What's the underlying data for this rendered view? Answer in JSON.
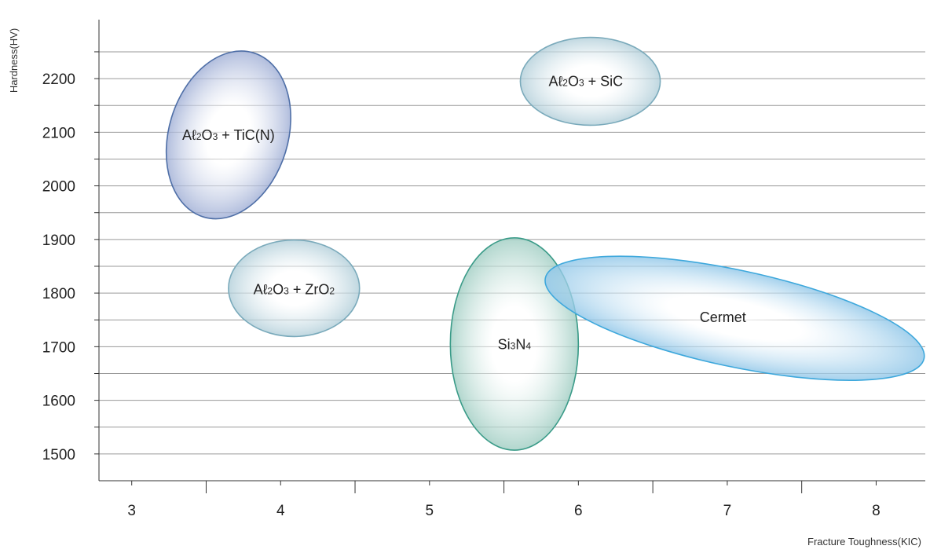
{
  "chart_data": {
    "type": "scatter",
    "title": "",
    "xlabel": "Fracture Toughness(KIC)",
    "ylabel": "Hardness(HV)",
    "xlim": [
      2.78,
      8.33
    ],
    "ylim": [
      1450,
      2310
    ],
    "xticks": [
      3,
      4,
      5,
      6,
      7,
      8
    ],
    "yticks": [
      1500,
      1600,
      1700,
      1800,
      1900,
      2000,
      2100,
      2200
    ],
    "grid": "horizontal",
    "regions": [
      {
        "name": "Al2O3 + TiC(N)",
        "label_parts": [
          [
            "Aℓ",
            "n"
          ],
          [
            "2",
            "s"
          ],
          [
            "O",
            "n"
          ],
          [
            "3",
            "s"
          ],
          [
            " + TiC(N)",
            "n"
          ]
        ],
        "center": [
          3.65,
          2095
        ],
        "x_radius": 0.4,
        "y_radius": 160,
        "rotation": 17,
        "label_at": [
          3.65,
          2095
        ],
        "color": "#9faed5",
        "stroke": "#4f6fa7"
      },
      {
        "name": "Al2O3 + SiC",
        "label_parts": [
          [
            "Aℓ",
            "n"
          ],
          [
            "2",
            "s"
          ],
          [
            "O",
            "n"
          ],
          [
            "3",
            "s"
          ],
          [
            " + SiC",
            "n"
          ]
        ],
        "center": [
          6.08,
          2195
        ],
        "x_radius": 0.47,
        "y_radius": 82,
        "rotation": 0,
        "label_at": [
          6.05,
          2195
        ],
        "color": "#b1ced9",
        "stroke": "#7aaabb"
      },
      {
        "name": "Al2O3 + ZrO2",
        "label_parts": [
          [
            "Aℓ",
            "n"
          ],
          [
            "2",
            "s"
          ],
          [
            "O",
            "n"
          ],
          [
            "3",
            "s"
          ],
          [
            " + ZrO",
            "n"
          ],
          [
            "2",
            "s"
          ]
        ],
        "center": [
          4.09,
          1809
        ],
        "x_radius": 0.44,
        "y_radius": 90,
        "rotation": 0,
        "label_at": [
          4.09,
          1807
        ],
        "color": "#b1ced9",
        "stroke": "#7aaabb"
      },
      {
        "name": "Si3N4",
        "label_parts": [
          [
            "Si",
            "n"
          ],
          [
            "3",
            "s"
          ],
          [
            "N",
            "n"
          ],
          [
            "4",
            "s"
          ]
        ],
        "center": [
          5.57,
          1705
        ],
        "x_radius": 0.43,
        "y_radius": 198,
        "rotation": 0,
        "label_at": [
          5.57,
          1704
        ],
        "color": "#9fcdc2",
        "stroke": "#3a9b88"
      },
      {
        "name": "Cermet",
        "label_parts": [
          [
            "Cermet",
            "n"
          ]
        ],
        "center": [
          7.05,
          1753
        ],
        "x_radius": 1.3,
        "y_radius": 90,
        "rotation": 12,
        "label_at": [
          6.97,
          1755
        ],
        "color": "#8fc6e8",
        "stroke": "#3ea8dc"
      }
    ]
  }
}
